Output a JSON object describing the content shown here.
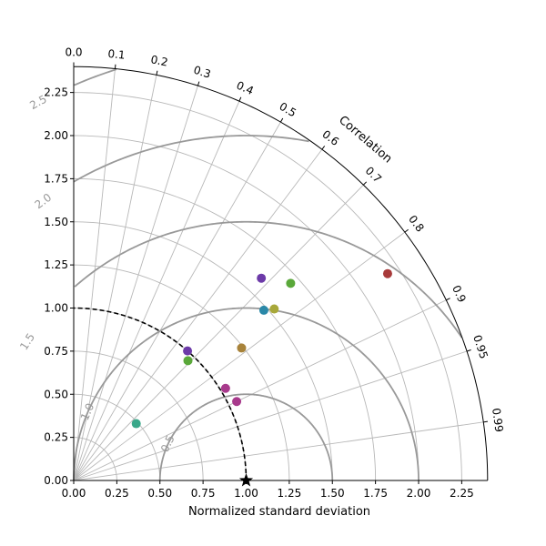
{
  "chart_data": {
    "type": "scatter",
    "subtype": "taylor-diagram",
    "xlabel": "Normalized standard deviation",
    "correlation_label": "Correlation",
    "std_range": [
      0,
      2.4
    ],
    "std_ticks": [
      "0.00",
      "0.25",
      "0.50",
      "0.75",
      "1.00",
      "1.25",
      "1.50",
      "1.75",
      "2.00",
      "2.25"
    ],
    "std_tick_values": [
      0,
      0.25,
      0.5,
      0.75,
      1.0,
      1.25,
      1.5,
      1.75,
      2.0,
      2.25
    ],
    "corr_ticks": [
      0.0,
      0.1,
      0.2,
      0.3,
      0.4,
      0.5,
      0.6,
      0.7,
      0.8,
      0.9,
      0.95,
      0.99
    ],
    "corr_tick_labels": [
      "0.0",
      "0.1",
      "0.2",
      "0.3",
      "0.4",
      "0.5",
      "0.6",
      "0.7",
      "0.8",
      "0.9",
      "0.95",
      "0.99"
    ],
    "rms_contours": [
      0.5,
      1.0,
      1.5,
      2.0,
      2.5
    ],
    "rms_contour_labels": [
      "0.5",
      "1.0",
      "1.5",
      "2.0",
      "2.5"
    ],
    "reference": {
      "std": 1.0,
      "marker": "star"
    },
    "grid": true,
    "points": [
      {
        "std": 0.49,
        "corr": 0.74,
        "color": "#3aa88a"
      },
      {
        "std": 1.0,
        "corr": 0.66,
        "color": "#6c3aa8"
      },
      {
        "std": 1.03,
        "corr": 0.855,
        "color": "#a83a8c"
      },
      {
        "std": 0.96,
        "corr": 0.69,
        "color": "#5aa83a"
      },
      {
        "std": 1.48,
        "corr": 0.745,
        "color": "#2a88a8"
      },
      {
        "std": 1.24,
        "corr": 0.785,
        "color": "#a8833a"
      },
      {
        "std": 1.6,
        "corr": 0.68,
        "color": "#6c3aa8"
      },
      {
        "std": 1.53,
        "corr": 0.76,
        "color": "#a8a83a"
      },
      {
        "std": 1.05,
        "corr": 0.9,
        "color": "#a83a8c"
      },
      {
        "std": 1.7,
        "corr": 0.74,
        "color": "#5aa83a"
      },
      {
        "std": 2.18,
        "corr": 0.835,
        "color": "#a83a3a"
      }
    ]
  }
}
